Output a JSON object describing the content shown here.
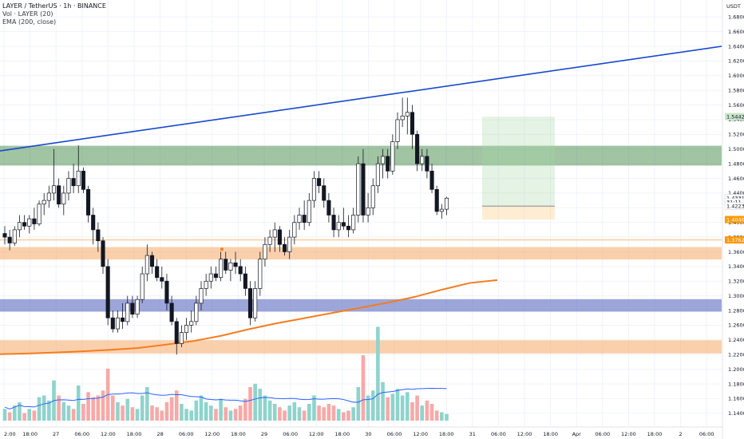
{
  "legend": {
    "symbol_line": "LAYER / TetherUS · 1h · BINANCE",
    "volume_line": "Vol · LAYER (20)",
    "ema_line": "EMA (200, close)"
  },
  "price_axis": {
    "currency": "USDT",
    "min": 1.13,
    "max": 1.69,
    "ticks": [
      "1.6800",
      "1.6600",
      "1.6400",
      "1.6200",
      "1.6000",
      "1.5800",
      "1.5600",
      "1.5400",
      "1.5200",
      "1.5000",
      "1.4800",
      "1.4600",
      "1.4400",
      "1.4200",
      "1.4000",
      "1.3800",
      "1.3600",
      "1.3400",
      "1.3200",
      "1.3000",
      "1.2800",
      "1.2600",
      "1.2400",
      "1.2200",
      "1.2000",
      "1.1800",
      "1.1600",
      "1.1400"
    ]
  },
  "price_tags": [
    {
      "label": "1.5442",
      "value": 1.5442,
      "bg": "#c8e6c9",
      "fg": "#131722"
    },
    {
      "label": "1.4331",
      "value": 1.4331,
      "bg": "#ffffff",
      "fg": "#131722"
    },
    {
      "label": "31:11",
      "value": 1.4277,
      "bg": "#ffffff",
      "fg": "#131722"
    },
    {
      "label": "1.4223",
      "value": 1.4223,
      "bg": "#ffffff",
      "fg": "#131722"
    },
    {
      "label": "1.4040",
      "value": 1.404,
      "bg": "#ff9800",
      "fg": "#ffffff"
    },
    {
      "label": "1.3762",
      "value": 1.3762,
      "bg": "#ff9800",
      "fg": "#ffffff"
    }
  ],
  "time_axis": {
    "labels": [
      "2:00",
      "18:00",
      "27",
      "06:00",
      "12:00",
      "18:00",
      "28",
      "06:00",
      "12:00",
      "18:00",
      "29",
      "06:00",
      "12:00",
      "18:00",
      "30",
      "06:00",
      "12:00",
      "18:00",
      "31",
      "06:00",
      "12:00",
      "18:00",
      "Apr",
      "06:00",
      "12:00",
      "18:00",
      "2",
      "06:00"
    ]
  },
  "zones": [
    {
      "name": "green-resistance-zone",
      "top": 1.5045,
      "bottom": 1.4775,
      "color": "#2e7d32",
      "opacity": 0.45
    },
    {
      "name": "orange-zone-upper",
      "top": 1.3665,
      "bottom": 1.3495,
      "color": "#f5a25a",
      "opacity": 0.5
    },
    {
      "name": "blue-zone",
      "top": 1.2955,
      "bottom": 1.2785,
      "color": "#5c6bc0",
      "opacity": 0.6
    },
    {
      "name": "orange-zone-lower",
      "top": 1.2395,
      "bottom": 1.2215,
      "color": "#f5a25a",
      "opacity": 0.5
    }
  ],
  "chart_data": {
    "type": "candlestick",
    "symbol": "LAYER / TetherUS",
    "interval": "1h",
    "exchange": "BINANCE",
    "ylim": [
      1.13,
      1.69
    ],
    "candles": [
      {
        "o": 1.385,
        "h": 1.395,
        "l": 1.37,
        "c": 1.38
      },
      {
        "o": 1.38,
        "h": 1.39,
        "l": 1.362,
        "c": 1.372
      },
      {
        "o": 1.372,
        "h": 1.395,
        "l": 1.368,
        "c": 1.39
      },
      {
        "o": 1.39,
        "h": 1.41,
        "l": 1.38,
        "c": 1.4
      },
      {
        "o": 1.4,
        "h": 1.41,
        "l": 1.39,
        "c": 1.395
      },
      {
        "o": 1.395,
        "h": 1.41,
        "l": 1.385,
        "c": 1.405
      },
      {
        "o": 1.405,
        "h": 1.42,
        "l": 1.39,
        "c": 1.398
      },
      {
        "o": 1.398,
        "h": 1.43,
        "l": 1.395,
        "c": 1.425
      },
      {
        "o": 1.425,
        "h": 1.44,
        "l": 1.41,
        "c": 1.43
      },
      {
        "o": 1.43,
        "h": 1.45,
        "l": 1.42,
        "c": 1.44
      },
      {
        "o": 1.44,
        "h": 1.5,
        "l": 1.43,
        "c": 1.45
      },
      {
        "o": 1.45,
        "h": 1.46,
        "l": 1.42,
        "c": 1.425
      },
      {
        "o": 1.425,
        "h": 1.45,
        "l": 1.41,
        "c": 1.44
      },
      {
        "o": 1.44,
        "h": 1.47,
        "l": 1.43,
        "c": 1.46
      },
      {
        "o": 1.46,
        "h": 1.48,
        "l": 1.44,
        "c": 1.45
      },
      {
        "o": 1.45,
        "h": 1.505,
        "l": 1.44,
        "c": 1.47
      },
      {
        "o": 1.47,
        "h": 1.475,
        "l": 1.44,
        "c": 1.445
      },
      {
        "o": 1.445,
        "h": 1.45,
        "l": 1.4,
        "c": 1.41
      },
      {
        "o": 1.41,
        "h": 1.42,
        "l": 1.37,
        "c": 1.39
      },
      {
        "o": 1.39,
        "h": 1.4,
        "l": 1.36,
        "c": 1.375
      },
      {
        "o": 1.375,
        "h": 1.38,
        "l": 1.33,
        "c": 1.34
      },
      {
        "o": 1.34,
        "h": 1.35,
        "l": 1.26,
        "c": 1.27
      },
      {
        "o": 1.27,
        "h": 1.28,
        "l": 1.25,
        "c": 1.255
      },
      {
        "o": 1.255,
        "h": 1.28,
        "l": 1.25,
        "c": 1.27
      },
      {
        "o": 1.27,
        "h": 1.29,
        "l": 1.255,
        "c": 1.265
      },
      {
        "o": 1.265,
        "h": 1.3,
        "l": 1.26,
        "c": 1.29
      },
      {
        "o": 1.29,
        "h": 1.3,
        "l": 1.27,
        "c": 1.275
      },
      {
        "o": 1.275,
        "h": 1.3,
        "l": 1.27,
        "c": 1.295
      },
      {
        "o": 1.295,
        "h": 1.34,
        "l": 1.29,
        "c": 1.33
      },
      {
        "o": 1.33,
        "h": 1.37,
        "l": 1.32,
        "c": 1.355
      },
      {
        "o": 1.355,
        "h": 1.36,
        "l": 1.33,
        "c": 1.34
      },
      {
        "o": 1.34,
        "h": 1.35,
        "l": 1.32,
        "c": 1.325
      },
      {
        "o": 1.325,
        "h": 1.34,
        "l": 1.31,
        "c": 1.32
      },
      {
        "o": 1.32,
        "h": 1.33,
        "l": 1.28,
        "c": 1.29
      },
      {
        "o": 1.29,
        "h": 1.3,
        "l": 1.26,
        "c": 1.265
      },
      {
        "o": 1.265,
        "h": 1.27,
        "l": 1.22,
        "c": 1.235
      },
      {
        "o": 1.235,
        "h": 1.26,
        "l": 1.23,
        "c": 1.25
      },
      {
        "o": 1.25,
        "h": 1.27,
        "l": 1.24,
        "c": 1.26
      },
      {
        "o": 1.26,
        "h": 1.28,
        "l": 1.25,
        "c": 1.265
      },
      {
        "o": 1.265,
        "h": 1.3,
        "l": 1.26,
        "c": 1.29
      },
      {
        "o": 1.29,
        "h": 1.32,
        "l": 1.28,
        "c": 1.31
      },
      {
        "o": 1.31,
        "h": 1.33,
        "l": 1.3,
        "c": 1.32
      },
      {
        "o": 1.32,
        "h": 1.34,
        "l": 1.31,
        "c": 1.33
      },
      {
        "o": 1.33,
        "h": 1.34,
        "l": 1.32,
        "c": 1.325
      },
      {
        "o": 1.325,
        "h": 1.36,
        "l": 1.32,
        "c": 1.35
      },
      {
        "o": 1.35,
        "h": 1.36,
        "l": 1.33,
        "c": 1.335
      },
      {
        "o": 1.335,
        "h": 1.35,
        "l": 1.32,
        "c": 1.345
      },
      {
        "o": 1.345,
        "h": 1.36,
        "l": 1.33,
        "c": 1.34
      },
      {
        "o": 1.34,
        "h": 1.35,
        "l": 1.32,
        "c": 1.33
      },
      {
        "o": 1.33,
        "h": 1.34,
        "l": 1.3,
        "c": 1.31
      },
      {
        "o": 1.31,
        "h": 1.32,
        "l": 1.26,
        "c": 1.27
      },
      {
        "o": 1.27,
        "h": 1.32,
        "l": 1.265,
        "c": 1.31
      },
      {
        "o": 1.31,
        "h": 1.36,
        "l": 1.3,
        "c": 1.35
      },
      {
        "o": 1.35,
        "h": 1.38,
        "l": 1.34,
        "c": 1.37
      },
      {
        "o": 1.37,
        "h": 1.39,
        "l": 1.36,
        "c": 1.38
      },
      {
        "o": 1.38,
        "h": 1.4,
        "l": 1.36,
        "c": 1.39
      },
      {
        "o": 1.39,
        "h": 1.395,
        "l": 1.36,
        "c": 1.37
      },
      {
        "o": 1.37,
        "h": 1.38,
        "l": 1.355,
        "c": 1.36
      },
      {
        "o": 1.36,
        "h": 1.39,
        "l": 1.35,
        "c": 1.38
      },
      {
        "o": 1.38,
        "h": 1.41,
        "l": 1.37,
        "c": 1.4
      },
      {
        "o": 1.4,
        "h": 1.42,
        "l": 1.39,
        "c": 1.41
      },
      {
        "o": 1.41,
        "h": 1.43,
        "l": 1.39,
        "c": 1.4
      },
      {
        "o": 1.4,
        "h": 1.44,
        "l": 1.395,
        "c": 1.43
      },
      {
        "o": 1.43,
        "h": 1.47,
        "l": 1.42,
        "c": 1.46
      },
      {
        "o": 1.46,
        "h": 1.47,
        "l": 1.44,
        "c": 1.45
      },
      {
        "o": 1.45,
        "h": 1.46,
        "l": 1.42,
        "c": 1.43
      },
      {
        "o": 1.43,
        "h": 1.44,
        "l": 1.4,
        "c": 1.41
      },
      {
        "o": 1.41,
        "h": 1.42,
        "l": 1.38,
        "c": 1.39
      },
      {
        "o": 1.39,
        "h": 1.41,
        "l": 1.38,
        "c": 1.4
      },
      {
        "o": 1.4,
        "h": 1.42,
        "l": 1.39,
        "c": 1.395
      },
      {
        "o": 1.395,
        "h": 1.41,
        "l": 1.38,
        "c": 1.39
      },
      {
        "o": 1.39,
        "h": 1.42,
        "l": 1.385,
        "c": 1.41
      },
      {
        "o": 1.41,
        "h": 1.49,
        "l": 1.4,
        "c": 1.48
      },
      {
        "o": 1.48,
        "h": 1.5,
        "l": 1.4,
        "c": 1.41
      },
      {
        "o": 1.41,
        "h": 1.44,
        "l": 1.4,
        "c": 1.42
      },
      {
        "o": 1.42,
        "h": 1.46,
        "l": 1.41,
        "c": 1.45
      },
      {
        "o": 1.45,
        "h": 1.49,
        "l": 1.44,
        "c": 1.48
      },
      {
        "o": 1.48,
        "h": 1.5,
        "l": 1.46,
        "c": 1.49
      },
      {
        "o": 1.49,
        "h": 1.5,
        "l": 1.46,
        "c": 1.47
      },
      {
        "o": 1.47,
        "h": 1.52,
        "l": 1.465,
        "c": 1.51
      },
      {
        "o": 1.51,
        "h": 1.55,
        "l": 1.5,
        "c": 1.54
      },
      {
        "o": 1.54,
        "h": 1.57,
        "l": 1.53,
        "c": 1.545
      },
      {
        "o": 1.545,
        "h": 1.57,
        "l": 1.52,
        "c": 1.55
      },
      {
        "o": 1.55,
        "h": 1.56,
        "l": 1.5,
        "c": 1.52
      },
      {
        "o": 1.52,
        "h": 1.525,
        "l": 1.47,
        "c": 1.48
      },
      {
        "o": 1.48,
        "h": 1.5,
        "l": 1.47,
        "c": 1.49
      },
      {
        "o": 1.49,
        "h": 1.5,
        "l": 1.46,
        "c": 1.47
      },
      {
        "o": 1.47,
        "h": 1.48,
        "l": 1.44,
        "c": 1.445
      },
      {
        "o": 1.445,
        "h": 1.45,
        "l": 1.41,
        "c": 1.415
      },
      {
        "o": 1.415,
        "h": 1.425,
        "l": 1.405,
        "c": 1.418
      },
      {
        "o": 1.418,
        "h": 1.435,
        "l": 1.41,
        "c": 1.4331
      }
    ],
    "volumes": [
      {
        "v": 14,
        "up": true
      },
      {
        "v": 10,
        "up": false
      },
      {
        "v": 18,
        "up": true
      },
      {
        "v": 22,
        "up": true
      },
      {
        "v": 9,
        "up": false
      },
      {
        "v": 14,
        "up": true
      },
      {
        "v": 12,
        "up": false
      },
      {
        "v": 28,
        "up": true
      },
      {
        "v": 30,
        "up": true
      },
      {
        "v": 24,
        "up": true
      },
      {
        "v": 48,
        "up": true
      },
      {
        "v": 30,
        "up": false
      },
      {
        "v": 22,
        "up": true
      },
      {
        "v": 18,
        "up": true
      },
      {
        "v": 14,
        "up": false
      },
      {
        "v": 42,
        "up": true
      },
      {
        "v": 20,
        "up": false
      },
      {
        "v": 34,
        "up": false
      },
      {
        "v": 28,
        "up": false
      },
      {
        "v": 30,
        "up": false
      },
      {
        "v": 36,
        "up": false
      },
      {
        "v": 62,
        "up": false
      },
      {
        "v": 30,
        "up": false
      },
      {
        "v": 22,
        "up": true
      },
      {
        "v": 18,
        "up": false
      },
      {
        "v": 26,
        "up": true
      },
      {
        "v": 16,
        "up": false
      },
      {
        "v": 14,
        "up": true
      },
      {
        "v": 30,
        "up": true
      },
      {
        "v": 40,
        "up": true
      },
      {
        "v": 18,
        "up": false
      },
      {
        "v": 16,
        "up": false
      },
      {
        "v": 12,
        "up": false
      },
      {
        "v": 22,
        "up": false
      },
      {
        "v": 28,
        "up": false
      },
      {
        "v": 36,
        "up": false
      },
      {
        "v": 20,
        "up": true
      },
      {
        "v": 14,
        "up": true
      },
      {
        "v": 12,
        "up": true
      },
      {
        "v": 24,
        "up": true
      },
      {
        "v": 30,
        "up": true
      },
      {
        "v": 22,
        "up": true
      },
      {
        "v": 18,
        "up": true
      },
      {
        "v": 14,
        "up": false
      },
      {
        "v": 26,
        "up": true
      },
      {
        "v": 16,
        "up": false
      },
      {
        "v": 12,
        "up": true
      },
      {
        "v": 14,
        "up": false
      },
      {
        "v": 18,
        "up": false
      },
      {
        "v": 26,
        "up": false
      },
      {
        "v": 40,
        "up": false
      },
      {
        "v": 44,
        "up": true
      },
      {
        "v": 38,
        "up": true
      },
      {
        "v": 30,
        "up": true
      },
      {
        "v": 24,
        "up": true
      },
      {
        "v": 20,
        "up": true
      },
      {
        "v": 16,
        "up": false
      },
      {
        "v": 12,
        "up": false
      },
      {
        "v": 18,
        "up": true
      },
      {
        "v": 22,
        "up": true
      },
      {
        "v": 16,
        "up": true
      },
      {
        "v": 12,
        "up": false
      },
      {
        "v": 20,
        "up": true
      },
      {
        "v": 30,
        "up": true
      },
      {
        "v": 18,
        "up": false
      },
      {
        "v": 16,
        "up": false
      },
      {
        "v": 20,
        "up": false
      },
      {
        "v": 18,
        "up": false
      },
      {
        "v": 14,
        "up": true
      },
      {
        "v": 10,
        "up": false
      },
      {
        "v": 12,
        "up": false
      },
      {
        "v": 16,
        "up": true
      },
      {
        "v": 40,
        "up": true
      },
      {
        "v": 78,
        "up": false
      },
      {
        "v": 30,
        "up": true
      },
      {
        "v": 36,
        "up": true
      },
      {
        "v": 112,
        "up": true
      },
      {
        "v": 46,
        "up": true
      },
      {
        "v": 28,
        "up": false
      },
      {
        "v": 32,
        "up": true
      },
      {
        "v": 38,
        "up": true
      },
      {
        "v": 30,
        "up": true
      },
      {
        "v": 34,
        "up": true
      },
      {
        "v": 22,
        "up": false
      },
      {
        "v": 30,
        "up": false
      },
      {
        "v": 18,
        "up": true
      },
      {
        "v": 24,
        "up": false
      },
      {
        "v": 20,
        "up": false
      },
      {
        "v": 12,
        "up": false
      },
      {
        "v": 10,
        "up": true
      },
      {
        "v": 8,
        "up": true
      }
    ],
    "ema200": [
      1.2205,
      1.2215,
      1.2228,
      1.2245,
      1.2265,
      1.229,
      1.2335,
      1.2385,
      1.2455,
      1.2545,
      1.2625,
      1.2695,
      1.2765,
      1.2835,
      1.2905,
      1.2985,
      1.3085,
      1.3175,
      1.3215
    ],
    "trendline": {
      "start": 1.4975,
      "end": 1.64
    },
    "horizontal_line": 1.3762,
    "position_tool": {
      "entry": 1.4223,
      "target": 1.5442,
      "stop": 1.404
    }
  },
  "colors": {
    "up": "#26a69a",
    "down": "#ef5350",
    "bg": "#ffffff",
    "grid": "#f0f3fa",
    "trendline": "#1848cc",
    "ema": "#f57c1f",
    "vol_ma": "#2962ff",
    "axis_text": "#131722"
  }
}
